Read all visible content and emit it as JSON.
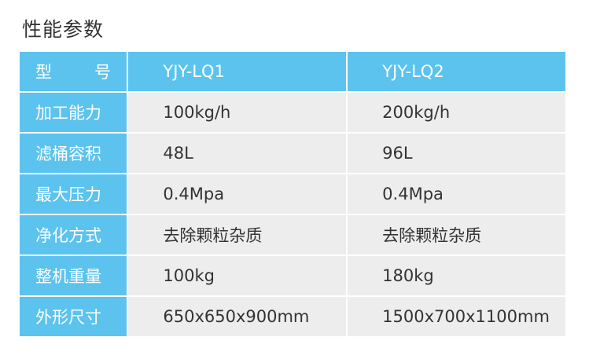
{
  "title": "性能参数",
  "header": {
    "label_left": "型",
    "label_right": "号",
    "models": [
      "YJY-LQ1",
      "YJY-LQ2"
    ]
  },
  "rows": [
    {
      "label": "加工能力",
      "values": [
        "100kg/h",
        "200kg/h"
      ]
    },
    {
      "label": "滤桶容积",
      "values": [
        "48L",
        "96L"
      ]
    },
    {
      "label": "最大压力",
      "values": [
        "0.4Mpa",
        "0.4Mpa"
      ]
    },
    {
      "label": "净化方式",
      "values": [
        "去除颗粒杂质",
        "去除颗粒杂质"
      ]
    },
    {
      "label": "整机重量",
      "values": [
        "100kg",
        "180kg"
      ]
    },
    {
      "label": "外形尺寸",
      "values": [
        "650x650x900mm",
        "1500x700x1100mm"
      ]
    }
  ],
  "colors": {
    "header_blue": "#5bc3ee",
    "row_grey": "#ededed"
  }
}
